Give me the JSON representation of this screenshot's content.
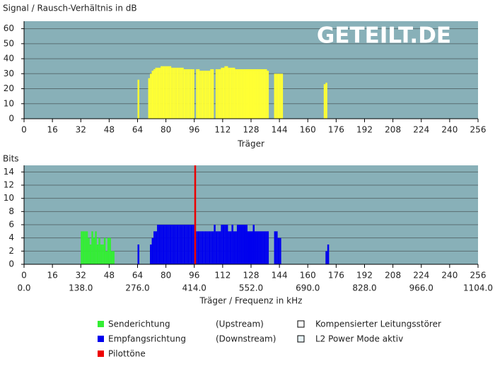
{
  "watermark": "GETEILT.DE",
  "checkboxes": [
    "Kompensierter Leitungsstörer",
    "L2 Power Mode aktiv"
  ],
  "chart_data": [
    {
      "type": "bar",
      "title": "Signal / Rausch-Verhältnis in dB",
      "x_label": "Träger",
      "xlim": [
        0,
        256
      ],
      "xticks": [
        0,
        16,
        32,
        48,
        64,
        80,
        96,
        112,
        128,
        144,
        160,
        176,
        192,
        208,
        224,
        240,
        256
      ],
      "ylim": [
        0,
        65
      ],
      "yticks": [
        0,
        10,
        20,
        30,
        40,
        50,
        60
      ],
      "grid": true,
      "series": [
        {
          "color": "#ffff33",
          "x": [
            64,
            70,
            71,
            72,
            73,
            74,
            75,
            76,
            77,
            78,
            79,
            80,
            81,
            82,
            83,
            84,
            85,
            86,
            87,
            88,
            89,
            90,
            91,
            92,
            93,
            94,
            95,
            97,
            98,
            99,
            100,
            101,
            102,
            103,
            104,
            105,
            106,
            108,
            109,
            110,
            111,
            112,
            113,
            114,
            115,
            116,
            117,
            118,
            119,
            120,
            121,
            122,
            123,
            124,
            125,
            126,
            127,
            128,
            129,
            130,
            131,
            132,
            133,
            134,
            135,
            136,
            137,
            141,
            142,
            143,
            144,
            145,
            169,
            170
          ],
          "values": [
            26,
            27,
            30,
            32,
            33,
            34,
            34,
            34,
            35,
            35,
            35,
            35,
            35,
            35,
            34,
            34,
            34,
            34,
            34,
            34,
            34,
            33,
            33,
            33,
            33,
            33,
            33,
            33,
            33,
            32,
            32,
            32,
            32,
            32,
            32,
            33,
            33,
            33,
            33,
            33,
            34,
            34,
            35,
            35,
            34,
            34,
            34,
            34,
            33,
            33,
            33,
            33,
            33,
            33,
            33,
            33,
            33,
            33,
            33,
            33,
            33,
            33,
            33,
            33,
            33,
            33,
            32,
            30,
            30,
            30,
            30,
            30,
            23,
            24
          ]
        }
      ]
    },
    {
      "type": "bar",
      "title": "Bits",
      "x_label": "Träger / Frequenz in kHz",
      "xlim": [
        0,
        256
      ],
      "xticks": [
        0,
        16,
        32,
        48,
        64,
        80,
        96,
        112,
        128,
        144,
        160,
        176,
        192,
        208,
        224,
        240,
        256
      ],
      "x2lim": [
        0,
        1104
      ],
      "x2ticks": [
        {
          "value": 0,
          "label": "0.0"
        },
        {
          "value": 138,
          "label": "138.0"
        },
        {
          "value": 276,
          "label": "276.0"
        },
        {
          "value": 414,
          "label": "414.0"
        },
        {
          "value": 552,
          "label": "552.0"
        },
        {
          "value": 690,
          "label": "690.0"
        },
        {
          "value": 828,
          "label": "828.0"
        },
        {
          "value": 966,
          "label": "966.0"
        },
        {
          "value": 1104,
          "label": "1104.0"
        }
      ],
      "ylim": [
        0,
        15
      ],
      "yticks": [
        0,
        2,
        4,
        6,
        8,
        10,
        12,
        14
      ],
      "grid": true,
      "series": [
        {
          "name": "Senderichtung",
          "direction": "(Upstream)",
          "color": "#33ee33",
          "x": [
            32,
            33,
            34,
            35,
            36,
            37,
            38,
            39,
            40,
            41,
            42,
            43,
            44,
            45,
            46,
            47,
            48,
            49,
            50
          ],
          "values": [
            5,
            5,
            5,
            5,
            4,
            3,
            5,
            4,
            5,
            3,
            4,
            3,
            3,
            4,
            2,
            4,
            4,
            2,
            2
          ]
        },
        {
          "name": "Empfangsrichtung",
          "direction": "(Downstream)",
          "color": "#0000ee",
          "x": [
            64,
            71,
            72,
            73,
            74,
            75,
            76,
            77,
            78,
            79,
            80,
            81,
            82,
            83,
            84,
            85,
            86,
            87,
            88,
            89,
            90,
            91,
            92,
            93,
            94,
            95,
            97,
            98,
            99,
            100,
            101,
            102,
            103,
            104,
            105,
            106,
            107,
            108,
            109,
            110,
            111,
            112,
            113,
            114,
            115,
            116,
            117,
            118,
            119,
            120,
            121,
            122,
            123,
            124,
            125,
            126,
            127,
            128,
            129,
            130,
            131,
            132,
            133,
            134,
            135,
            136,
            137,
            141,
            142,
            143,
            144,
            170,
            171
          ],
          "values": [
            3,
            3,
            4,
            5,
            5,
            6,
            6,
            6,
            6,
            6,
            6,
            6,
            6,
            6,
            6,
            6,
            6,
            6,
            6,
            6,
            6,
            6,
            6,
            6,
            6,
            6,
            5,
            5,
            5,
            5,
            5,
            5,
            5,
            5,
            5,
            5,
            6,
            5,
            5,
            5,
            6,
            6,
            6,
            6,
            5,
            5,
            6,
            5,
            5,
            6,
            6,
            6,
            6,
            6,
            6,
            5,
            5,
            5,
            6,
            5,
            5,
            5,
            5,
            5,
            5,
            5,
            5,
            5,
            5,
            4,
            4,
            2,
            3
          ]
        },
        {
          "name": "Pilottöne",
          "color": "#ee0000",
          "x": [
            96
          ],
          "values": [
            15
          ]
        }
      ]
    }
  ]
}
